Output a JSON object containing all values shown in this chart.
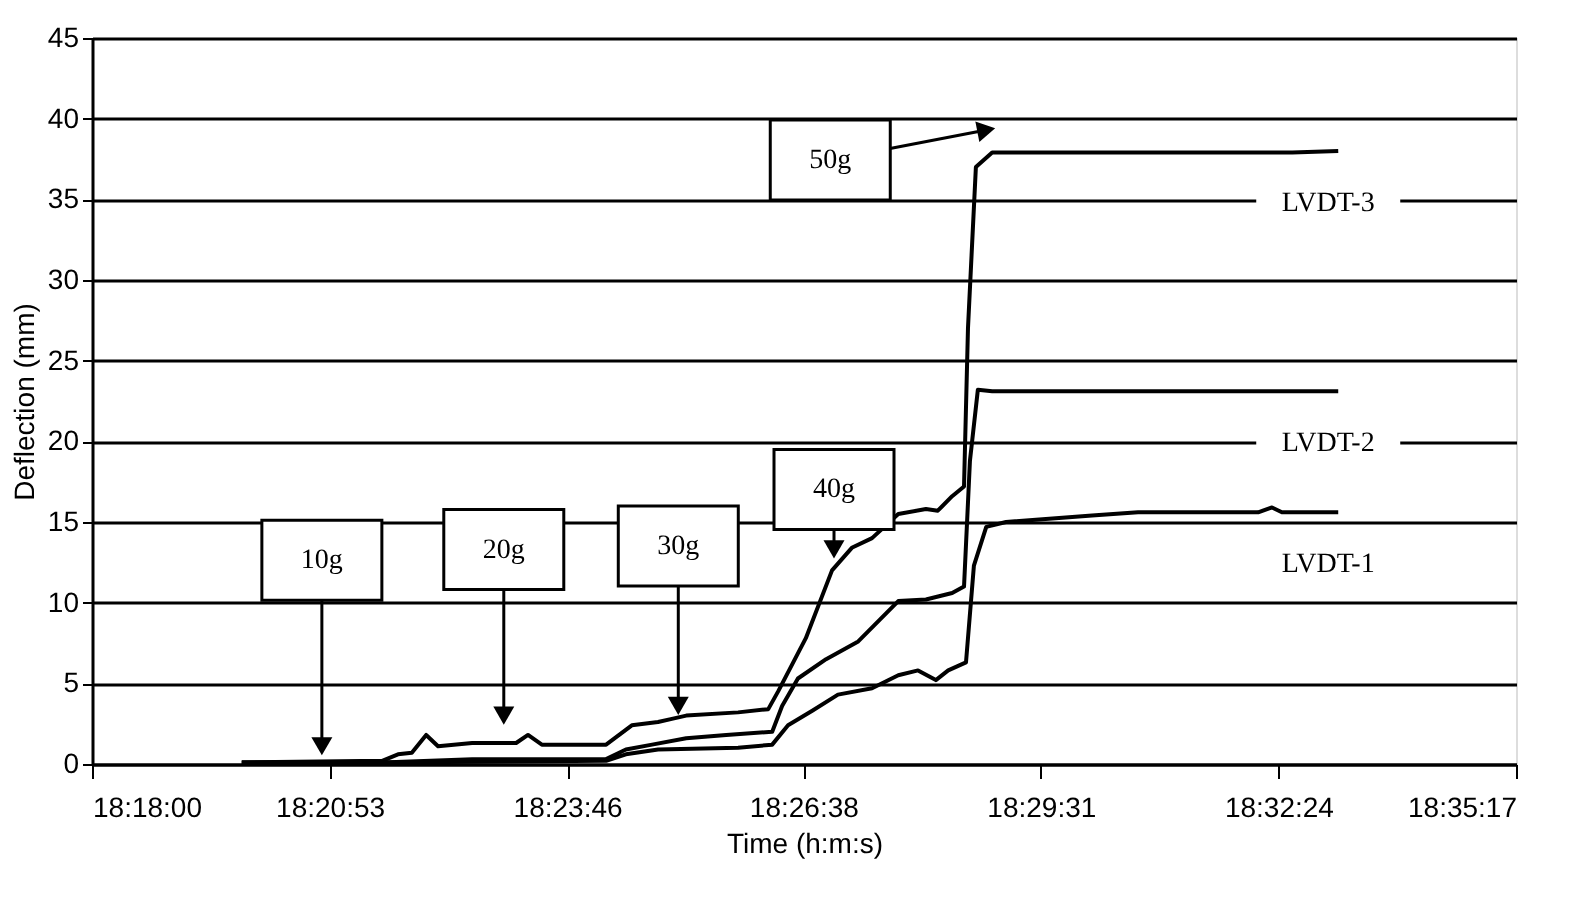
{
  "chart_data": {
    "type": "line",
    "xlabel": "Time (h:m:s)",
    "ylabel": "Deflection (mm)",
    "xlim": [
      18.3,
      18.58806
    ],
    "ylim": [
      0,
      45
    ],
    "xticks": [
      {
        "value": 18.3,
        "label": "18:18:00"
      },
      {
        "value": 18.34806,
        "label": "18:20:53"
      },
      {
        "value": 18.39611,
        "label": "18:23:46"
      },
      {
        "value": 18.44389,
        "label": "18:26:38"
      },
      {
        "value": 18.49194,
        "label": "18:29:31"
      },
      {
        "value": 18.54,
        "label": "18:32:24"
      },
      {
        "value": 18.58806,
        "label": "18:35:17"
      }
    ],
    "yticks": [
      0,
      5,
      10,
      15,
      20,
      25,
      30,
      35,
      40,
      45
    ],
    "grid": "y",
    "legend": false,
    "marker": "none",
    "line_style": "solid",
    "series": [
      {
        "name": "LVDT-1",
        "color": "#000000",
        "x": [
          18.3303,
          18.3587,
          18.404,
          18.408,
          18.4145,
          18.4307,
          18.4376,
          18.4408,
          18.4457,
          18.4509,
          18.4578,
          18.4631,
          18.4671,
          18.4707,
          18.4732,
          18.4768,
          18.4784,
          18.4809,
          18.4849,
          18.5023,
          18.5116,
          18.5359,
          18.5387,
          18.5407,
          18.5521
        ],
        "values": [
          0.1,
          0.1,
          0.2,
          0.6,
          0.9,
          1.0,
          1.2,
          2.4,
          3.3,
          4.3,
          4.7,
          5.5,
          5.8,
          5.2,
          5.8,
          6.3,
          12.3,
          14.7,
          15.0,
          15.4,
          15.6,
          15.6,
          15.9,
          15.6,
          15.6
        ]
      },
      {
        "name": "LVDT-2",
        "color": "#000000",
        "x": [
          18.3303,
          18.3587,
          18.3769,
          18.404,
          18.408,
          18.4133,
          18.4202,
          18.4283,
          18.4376,
          18.4396,
          18.4428,
          18.4485,
          18.455,
          18.4631,
          18.4687,
          18.474,
          18.4764,
          18.4776,
          18.4792,
          18.4821,
          18.5521
        ],
        "values": [
          0.1,
          0.1,
          0.3,
          0.3,
          0.9,
          1.2,
          1.6,
          1.8,
          2.0,
          3.6,
          5.3,
          6.5,
          7.6,
          10.1,
          10.2,
          10.6,
          11.0,
          18.8,
          23.2,
          23.1,
          23.1
        ]
      },
      {
        "name": "LVDT-3",
        "color": "#000000",
        "x": [
          18.3303,
          18.3587,
          18.3619,
          18.3647,
          18.3676,
          18.37,
          18.3769,
          18.3858,
          18.3882,
          18.391,
          18.404,
          18.4092,
          18.4145,
          18.4173,
          18.4202,
          18.4307,
          18.4368,
          18.4388,
          18.4444,
          18.4497,
          18.4537,
          18.4578,
          18.4631,
          18.4687,
          18.4711,
          18.474,
          18.4764,
          18.4772,
          18.4788,
          18.4821,
          18.5428,
          18.5521
        ],
        "values": [
          0.1,
          0.2,
          0.6,
          0.7,
          1.8,
          1.1,
          1.3,
          1.3,
          1.8,
          1.2,
          1.2,
          2.4,
          2.6,
          2.8,
          3.0,
          3.2,
          3.4,
          4.5,
          7.8,
          12.0,
          13.4,
          14.0,
          15.5,
          15.8,
          15.7,
          16.6,
          17.2,
          27.0,
          37.0,
          37.9,
          37.9,
          38.0
        ]
      }
    ],
    "annotations": [
      {
        "text": "10g",
        "x": 18.3465,
        "y": 1.1
      },
      {
        "text": "20g",
        "x": 18.3833,
        "y": 3.0
      },
      {
        "text": "30g",
        "x": 18.4186,
        "y": 3.6
      },
      {
        "text": "40g",
        "x": 18.4501,
        "y": 13.3
      },
      {
        "text": "50g",
        "x": 18.4809,
        "y": 39.3
      }
    ]
  }
}
